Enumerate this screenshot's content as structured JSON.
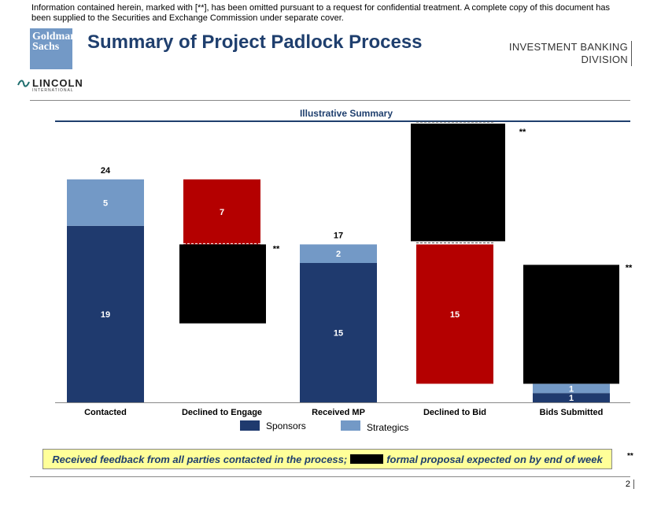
{
  "header": {
    "disclaimer": "Information contained herein, marked with [**], has been omitted pursuant to a request for confidential treatment. A complete copy of this document has been supplied to the Securities and Exchange Commission under separate cover.",
    "logo_line1": "Goldman",
    "logo_line2": "Sachs",
    "title": "Summary of Project Padlock Process",
    "division_line1": "INVESTMENT BANKING",
    "division_line2": "DIVISION",
    "partner_name": "LINCOLN",
    "partner_sub": "INTERNATIONAL"
  },
  "chart_data": {
    "type": "bar",
    "subtitle": "Illustrative Summary",
    "categories": [
      "Contacted",
      "Declined to Engage",
      "Received MP",
      "Declined to Bid",
      "Bids Submitted"
    ],
    "series": [
      {
        "name": "Sponsors",
        "values": [
          19,
          null,
          15,
          null,
          1
        ]
      },
      {
        "name": "Strategics",
        "values": [
          5,
          null,
          2,
          null,
          1
        ]
      },
      {
        "name": "Declined",
        "values": [
          null,
          7,
          null,
          15,
          null
        ]
      }
    ],
    "totals": [
      24,
      null,
      17,
      null,
      null
    ],
    "redacted_marker": "**",
    "legend": [
      "Sponsors",
      "Strategics"
    ],
    "colors": {
      "sponsors": "#1f3a6e",
      "strategics": "#7399c6",
      "declined": "#b40000",
      "redacted": "#000000"
    }
  },
  "footer": {
    "callout_part1": "Received feedback from all parties contacted in the process;",
    "callout_part2": "formal proposal expected on by end of week",
    "callout_mark": "**",
    "page_number": "2"
  }
}
